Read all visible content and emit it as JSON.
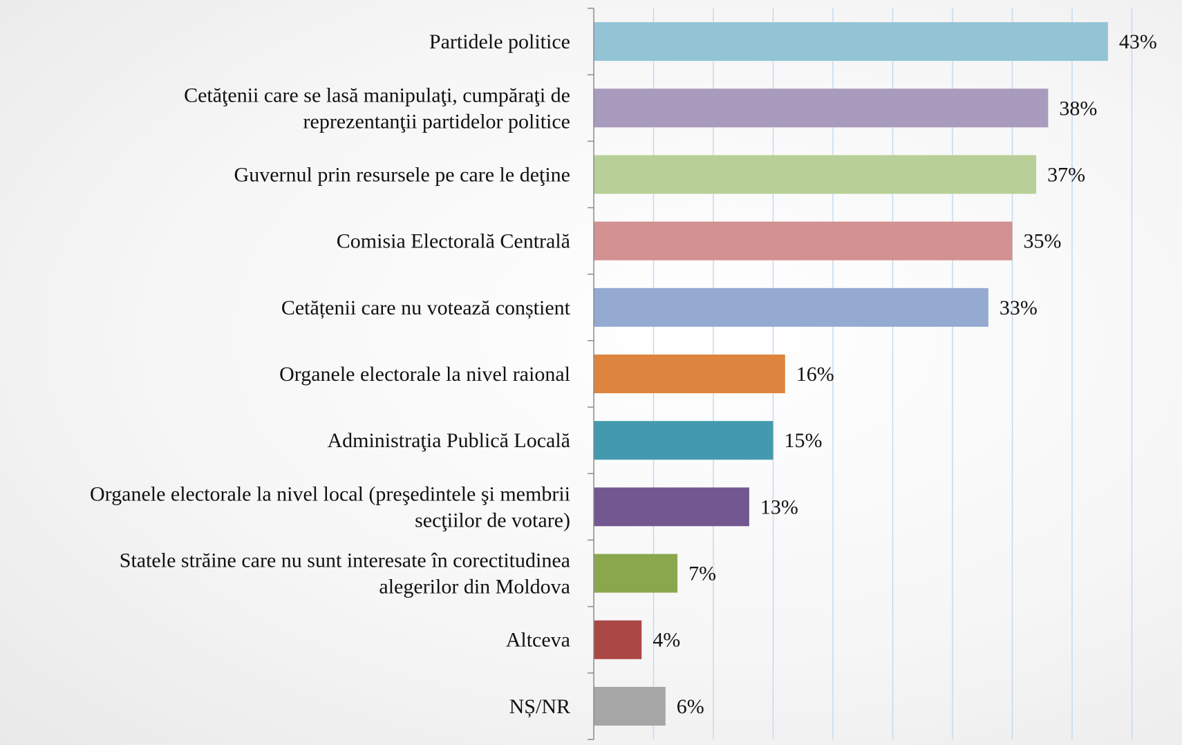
{
  "chart_data": {
    "type": "bar",
    "orientation": "horizontal",
    "categories": [
      "Partidele politice",
      "Cetățenii care se lasă manipulați, cumpărați de reprezentanții partidelor politice",
      "Guvernul prin resursele pe care le deține",
      "Comisia Electorală Centrală",
      "Cetățenii care nu votează conștient",
      "Organele electorale la nivel raional",
      "Administrația Publică Locală",
      "Organele electorale la nivel local (președintele și membrii secțiilor de votare)",
      "Statele străine care nu sunt interesate în corectitudinea alegerilor din Moldova",
      "Altceva",
      "NȘ/NR"
    ],
    "label_lines": [
      [
        "Partidele politice"
      ],
      [
        "Cetăţenii care se lasă manipulaţi, cumpăraţi de",
        "reprezentanţii partidelor politice"
      ],
      [
        "Guvernul prin resursele pe care le deţine"
      ],
      [
        "Comisia Electorală Centrală"
      ],
      [
        "Cetățenii care nu votează conștient"
      ],
      [
        "Organele electorale la nivel raional"
      ],
      [
        "Administraţia Publică Locală"
      ],
      [
        "Organele electorale la nivel local (preşedintele şi membrii",
        "secţiilor de votare)"
      ],
      [
        "Statele străine care nu sunt interesate în corectitudinea",
        "alegerilor din Moldova"
      ],
      [
        "Altceva"
      ],
      [
        "NȘ/NR"
      ]
    ],
    "values": [
      43,
      38,
      37,
      35,
      33,
      16,
      15,
      13,
      7,
      4,
      6
    ],
    "value_labels": [
      "43%",
      "38%",
      "37%",
      "35%",
      "33%",
      "16%",
      "15%",
      "13%",
      "7%",
      "4%",
      "6%"
    ],
    "colors": [
      "#93c4d6",
      "#a99bbd",
      "#b8d098",
      "#d39191",
      "#94aad1",
      "#dd853e",
      "#439aaf",
      "#735790",
      "#8ba74e",
      "#a94845",
      "#a6a6a6"
    ],
    "xlim": [
      0,
      45
    ],
    "grid": true,
    "legend": "none",
    "title": "",
    "xlabel": "",
    "ylabel": ""
  }
}
